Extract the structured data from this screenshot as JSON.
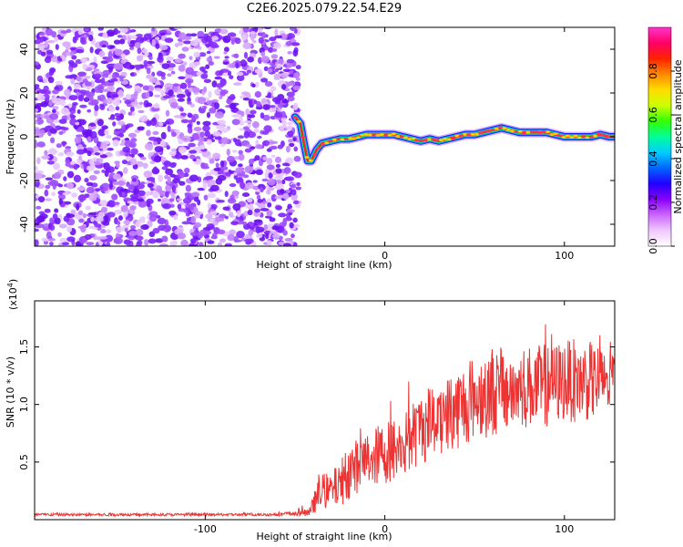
{
  "title": "C2E6.2025.079.22.54.E29",
  "chart_data": [
    {
      "type": "heatmap",
      "xlabel": "Height of straight line (km)",
      "ylabel": "Frequency (Hz)",
      "xlim": [
        -195,
        128
      ],
      "ylim": [
        -50,
        50
      ],
      "x_ticks": [
        -100,
        0,
        100
      ],
      "y_ticks": [
        -40,
        -20,
        0,
        20,
        40
      ],
      "colorbar": {
        "label": "Normalized spectral amplitude",
        "range": [
          0,
          1
        ],
        "ticks": [
          "0.0",
          "0.2",
          "0.4",
          "0.6",
          "0.8"
        ],
        "colors": [
          "#ffffff",
          "#f0c8ff",
          "#cc66ff",
          "#8800ff",
          "#2200ff",
          "#0066ff",
          "#00ccff",
          "#00ff99",
          "#33ff00",
          "#ccff00",
          "#ffdd00",
          "#ff8800",
          "#ff2200",
          "#ff0066",
          "#ff33cc"
        ]
      },
      "noise_region_x": [
        -195,
        -50
      ],
      "signal_trace": {
        "x": [
          -50,
          -47,
          -45,
          -43,
          -41,
          -38,
          -35,
          -30,
          -25,
          -20,
          -15,
          -10,
          -5,
          0,
          5,
          10,
          15,
          20,
          25,
          30,
          35,
          40,
          45,
          50,
          55,
          60,
          65,
          70,
          75,
          80,
          85,
          90,
          95,
          100,
          105,
          110,
          115,
          120,
          125,
          128
        ],
        "y": [
          9,
          6,
          -3,
          -11,
          -11,
          -6,
          -3,
          -2,
          -1,
          -1,
          0,
          1,
          1,
          1,
          1,
          0,
          -1,
          -2,
          -1,
          -2,
          -1,
          0,
          1,
          1,
          2,
          3,
          4,
          3,
          2,
          2,
          2,
          2,
          1,
          0,
          0,
          0,
          0,
          1,
          0,
          0
        ]
      }
    },
    {
      "type": "line",
      "xlabel": "Height of straight line (km)",
      "ylabel": "SNR (10 * v/v)",
      "multiplier_label": "(x10",
      "multiplier_exp": "4",
      "multiplier_close": ")",
      "xlim": [
        -195,
        128
      ],
      "ylim": [
        0,
        1.9
      ],
      "x_ticks": [
        -100,
        0,
        100
      ],
      "y_ticks": [
        "0.5",
        "1.0",
        "1.5"
      ],
      "color": "#ee3333",
      "series_envelope": {
        "x": [
          -195,
          -60,
          -42,
          -38,
          -35,
          -30,
          -25,
          -20,
          -10,
          0,
          10,
          20,
          30,
          40,
          50,
          60,
          70,
          80,
          90,
          100,
          110,
          120,
          128
        ],
        "baseline": [
          0.04,
          0.04,
          0.05,
          0.15,
          0.2,
          0.2,
          0.25,
          0.35,
          0.45,
          0.5,
          0.55,
          0.7,
          0.8,
          0.85,
          0.95,
          1.0,
          1.0,
          1.05,
          1.05,
          1.1,
          1.1,
          1.1,
          1.15
        ],
        "spread": [
          0.015,
          0.015,
          0.05,
          0.15,
          0.2,
          0.2,
          0.25,
          0.3,
          0.3,
          0.35,
          0.35,
          0.4,
          0.45,
          0.45,
          0.45,
          0.5,
          0.45,
          0.45,
          0.45,
          0.45,
          0.45,
          0.4,
          0.4
        ]
      }
    }
  ]
}
